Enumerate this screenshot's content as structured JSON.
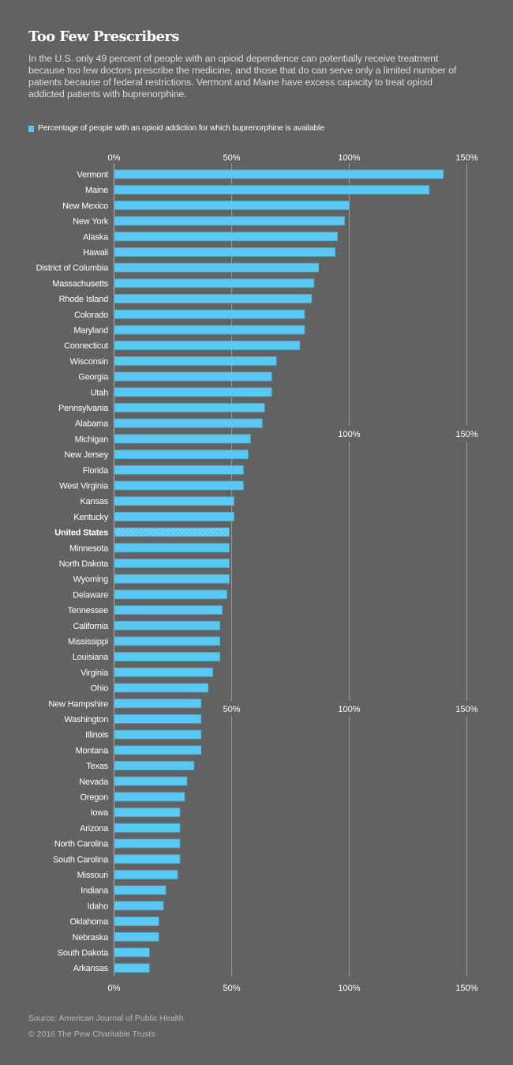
{
  "header": {
    "title": "Too Few Prescribers",
    "subtitle": "In the U.S. only 49 percent of people with an opioid dependence can potentially receive treatment because too few doctors prescribe the medicine, and those that do can serve only a limited number of patients because of federal restrictions. Vermont and Maine have excess capacity to treat opioid addicted patients with buprenorphine."
  },
  "footer": {
    "source": "Source: American Journal of Public Health",
    "copyright": "© 2016 The Pew Charitable Trusts"
  },
  "colors": {
    "background": "#616261",
    "bar": "#5bc8f2",
    "bar_edge": "#4aa8cf",
    "gridline": "#9a9a9a",
    "text": "#ffffff"
  },
  "chart_data": {
    "type": "bar",
    "orientation": "horizontal",
    "title": "Too Few Prescribers",
    "legend": [
      {
        "label": "Percentage of people with an opioid addiction for which buprenorphine is available",
        "color": "#5bc8f2"
      }
    ],
    "legend_position": "top-left",
    "xlabel": "",
    "ylabel": "",
    "xlim": [
      0,
      150
    ],
    "x_ticks": [
      "0%",
      "50%",
      "100%",
      "150%"
    ],
    "x_tick_values": [
      0,
      50,
      100,
      150
    ],
    "grid": true,
    "highlight": "United States",
    "categories": [
      "Vermont",
      "Maine",
      "New Mexico",
      "New York",
      "Alaska",
      "Hawaii",
      "District of Columbia",
      "Massachusetts",
      "Rhode Island",
      "Colorado",
      "Maryland",
      "Connecticut",
      "Wisconsin",
      "Georgia",
      "Utah",
      "Pennsylvania",
      "Alabama",
      "Michigan",
      "New Jersey",
      "Florida",
      "West Virginia",
      "Kansas",
      "Kentucky",
      "United States",
      "Minnesota",
      "North Dakota",
      "Wyoming",
      "Delaware",
      "Tennessee",
      "California",
      "Mississippi",
      "Louisiana",
      "Virginia",
      "Ohio",
      "New Hampshire",
      "Washington",
      "Illinois",
      "Montana",
      "Texas",
      "Nevada",
      "Oregon",
      "Iowa",
      "Arizona",
      "North Carolina",
      "South Carolina",
      "Missouri",
      "Indiana",
      "Idaho",
      "Oklahoma",
      "Nebraska",
      "South Dakota",
      "Arkansas"
    ],
    "values": [
      140,
      134,
      100,
      98,
      95,
      94,
      87,
      85,
      84,
      81,
      81,
      79,
      69,
      67,
      67,
      64,
      63,
      58,
      57,
      55,
      55,
      51,
      51,
      49,
      49,
      49,
      49,
      48,
      46,
      45,
      45,
      45,
      42,
      40,
      37,
      37,
      37,
      37,
      34,
      31,
      30,
      28,
      28,
      28,
      28,
      27,
      22,
      21,
      19,
      19,
      15,
      15
    ]
  }
}
